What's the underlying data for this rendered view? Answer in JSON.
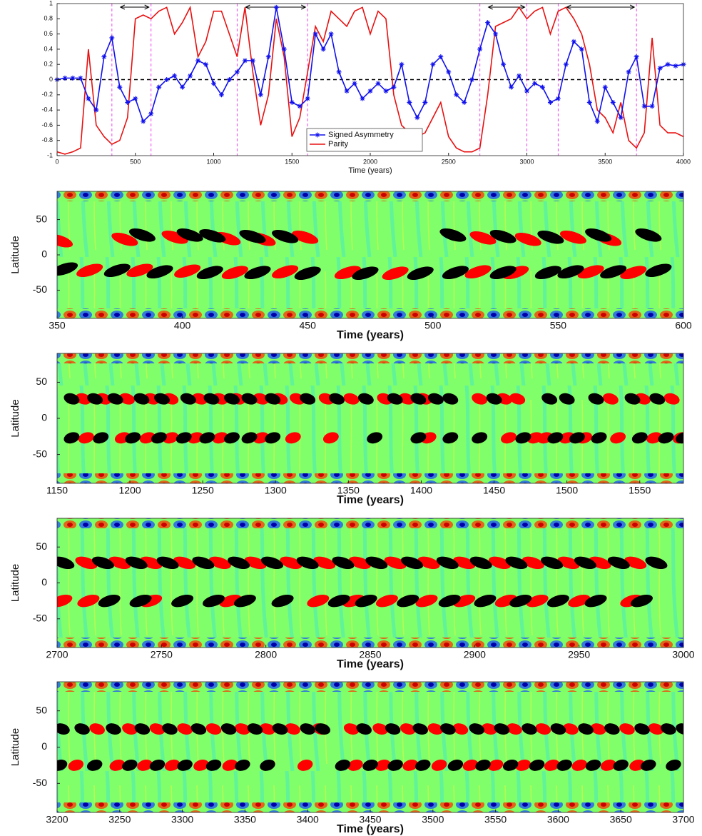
{
  "chart_data": [
    {
      "type": "line",
      "xlabel": "Time (years)",
      "xlim": [
        0,
        4000
      ],
      "xticks": [
        0,
        500,
        1000,
        1500,
        2000,
        2500,
        3000,
        3500,
        4000
      ],
      "ylim": [
        -1,
        1
      ],
      "yticks": [
        -1,
        -0.8,
        -0.6,
        -0.4,
        -0.2,
        0,
        0.2,
        0.4,
        0.6,
        0.8,
        1
      ],
      "reference_line": 0,
      "legend": "lower center",
      "intervals": [
        [
          350,
          600
        ],
        [
          1150,
          1600
        ],
        [
          2700,
          3000
        ],
        [
          3200,
          3700
        ]
      ],
      "x": [
        0,
        50,
        100,
        150,
        200,
        250,
        300,
        350,
        400,
        450,
        500,
        550,
        600,
        650,
        700,
        750,
        800,
        850,
        900,
        950,
        1000,
        1050,
        1100,
        1150,
        1200,
        1250,
        1300,
        1350,
        1400,
        1450,
        1500,
        1550,
        1600,
        1650,
        1700,
        1750,
        1800,
        1850,
        1900,
        1950,
        2000,
        2050,
        2100,
        2150,
        2200,
        2250,
        2300,
        2350,
        2400,
        2450,
        2500,
        2550,
        2600,
        2650,
        2700,
        2750,
        2800,
        2850,
        2900,
        2950,
        3000,
        3050,
        3100,
        3150,
        3200,
        3250,
        3300,
        3350,
        3400,
        3450,
        3500,
        3550,
        3600,
        3650,
        3700,
        3750,
        3800,
        3850,
        3900,
        3950,
        4000
      ],
      "series": [
        {
          "name": "Signed Asymmetry",
          "color": "#1010ee",
          "marker": "*",
          "values": [
            0,
            0.02,
            0.02,
            0.02,
            -0.25,
            -0.4,
            0.3,
            0.55,
            -0.1,
            -0.3,
            -0.25,
            -0.55,
            -0.45,
            -0.1,
            0,
            0.05,
            -0.1,
            0.05,
            0.25,
            0.2,
            -0.05,
            -0.2,
            0,
            0.1,
            0.25,
            0.25,
            -0.2,
            0.3,
            0.95,
            0.4,
            -0.3,
            -0.35,
            -0.25,
            0.6,
            0.4,
            0.6,
            0.1,
            -0.15,
            -0.05,
            -0.25,
            -0.15,
            -0.05,
            -0.15,
            -0.1,
            0.2,
            -0.3,
            -0.5,
            -0.3,
            0.2,
            0.3,
            0.1,
            -0.2,
            -0.3,
            0,
            0.4,
            0.75,
            0.6,
            0.2,
            -0.1,
            0.05,
            -0.15,
            -0.05,
            -0.1,
            -0.3,
            -0.25,
            0.2,
            0.5,
            0.4,
            -0.3,
            -0.55,
            -0.1,
            -0.3,
            -0.5,
            0.1,
            0.3,
            -0.35,
            -0.35,
            0.15,
            0.2,
            0.18,
            0.2
          ]
        },
        {
          "name": "Parity",
          "color": "#e81010",
          "values": [
            -0.95,
            -0.98,
            -0.95,
            -0.9,
            0.4,
            -0.6,
            -0.75,
            -0.85,
            -0.8,
            -0.5,
            0.8,
            0.85,
            0.8,
            0.9,
            0.95,
            0.6,
            0.75,
            0.95,
            0.3,
            0.5,
            0.9,
            0.9,
            0.6,
            0.3,
            0.95,
            0.1,
            -0.6,
            -0.2,
            0.8,
            0.3,
            -0.75,
            -0.5,
            0.1,
            0.7,
            0.5,
            0.9,
            0.8,
            0.7,
            0.9,
            0.95,
            0.6,
            0.9,
            0.8,
            -0.2,
            -0.6,
            -0.7,
            -0.75,
            -0.7,
            -0.5,
            -0.3,
            -0.75,
            -0.9,
            -0.95,
            -0.95,
            -0.9,
            -0.2,
            0.7,
            0.75,
            0.8,
            0.95,
            0.8,
            0.9,
            0.95,
            0.6,
            0.9,
            0.95,
            0.8,
            0.6,
            0.2,
            -0.4,
            -0.5,
            -0.7,
            -0.3,
            -0.8,
            -0.9,
            -0.7,
            0.55,
            -0.6,
            -0.7,
            -0.7,
            -0.75
          ]
        }
      ]
    },
    {
      "type": "butterfly",
      "xlabel": "Time (years)",
      "ylabel": "Latitude",
      "xlim": [
        350,
        600
      ],
      "xticks": [
        350,
        400,
        450,
        500,
        550,
        600
      ],
      "ylim": [
        -90,
        90
      ],
      "yticks": [
        -50,
        0,
        50
      ],
      "series": [
        {
          "color": "#ff0000",
          "x": [
            351,
            377,
            397,
            418,
            432,
            449,
            520,
            538,
            556,
            570,
            363,
            383,
            402,
            421,
            441,
            466,
            485,
            518,
            533,
            563,
            580
          ],
          "y": [
            20,
            22,
            25,
            23,
            22,
            25,
            24,
            22,
            25,
            22,
            -22,
            -22,
            -23,
            -25,
            -24,
            -25,
            -26,
            -24,
            -25,
            -24,
            -25
          ]
        },
        {
          "color": "#000000",
          "x": [
            384,
            403,
            412,
            428,
            441,
            508,
            528,
            547,
            566,
            586,
            353,
            374,
            391,
            411,
            430,
            450,
            473,
            495,
            509,
            528,
            546,
            555,
            572,
            590
          ],
          "y": [
            28,
            28,
            27,
            26,
            26,
            28,
            26,
            25,
            28,
            28,
            -20,
            -22,
            -24,
            -25,
            -25,
            -26,
            -26,
            -26,
            -25,
            -25,
            -25,
            -24,
            -24,
            -22
          ]
        }
      ]
    },
    {
      "type": "butterfly",
      "xlabel": "Time (years)",
      "ylabel": "Latitude",
      "xlim": [
        1150,
        1580
      ],
      "xticks": [
        1150,
        1200,
        1250,
        1300,
        1350,
        1400,
        1450,
        1500,
        1550
      ],
      "ylim": [
        -90,
        90
      ],
      "yticks": [
        -50,
        0,
        50
      ],
      "series": [
        {
          "color": "#ff0000",
          "x": [
            1168,
            1182,
            1198,
            1215,
            1228,
            1248,
            1262,
            1274,
            1290,
            1303,
            1315,
            1335,
            1352,
            1375,
            1390,
            1402,
            1440,
            1457,
            1466,
            1530,
            1552,
            1572
          ],
          "y": [
            27,
            27,
            27,
            27,
            27,
            27,
            27,
            27,
            27,
            27,
            27,
            27,
            27,
            27,
            27,
            27,
            27,
            27,
            27,
            27,
            27,
            27
          ]
        },
        {
          "color": "#ff0000",
          "x": [
            1170,
            1195,
            1212,
            1228,
            1245,
            1262,
            1290,
            1312,
            1338,
            1405,
            1460,
            1478,
            1485,
            1500,
            1512,
            1535,
            1560,
            1578
          ],
          "y": [
            -27,
            -27,
            -27,
            -27,
            -27,
            -27,
            -27,
            -27,
            -27,
            -27,
            -27,
            -27,
            -27,
            -27,
            -27,
            -27,
            -27,
            -27
          ]
        },
        {
          "color": "#000000",
          "x": [
            1160,
            1176,
            1190,
            1208,
            1222,
            1240,
            1256,
            1270,
            1282,
            1298,
            1322,
            1342,
            1362,
            1382,
            1398,
            1410,
            1420,
            1450,
            1488,
            1500,
            1520,
            1545,
            1562
          ],
          "y": [
            27,
            27,
            27,
            27,
            27,
            27,
            27,
            27,
            27,
            27,
            27,
            27,
            27,
            27,
            27,
            27,
            27,
            27,
            27,
            27,
            27,
            27,
            27
          ]
        },
        {
          "color": "#000000",
          "x": [
            1160,
            1180,
            1202,
            1220,
            1237,
            1253,
            1270,
            1282,
            1298,
            1368,
            1398,
            1420,
            1440,
            1470,
            1492,
            1507,
            1522,
            1550,
            1568,
            1580
          ],
          "y": [
            -27,
            -27,
            -27,
            -27,
            -27,
            -27,
            -27,
            -27,
            -27,
            -27,
            -27,
            -27,
            -27,
            -27,
            -27,
            -27,
            -27,
            -27,
            -27,
            -27
          ]
        }
      ]
    },
    {
      "type": "butterfly",
      "xlabel": "Time (years)",
      "ylabel": "Latitude",
      "xlim": [
        2700,
        3000
      ],
      "xticks": [
        2700,
        2750,
        2800,
        2850,
        2900,
        2950,
        3000
      ],
      "ylim": [
        -90,
        90
      ],
      "yticks": [
        -50,
        0,
        50
      ],
      "series": [
        {
          "color": "#ff0000",
          "x": [
            2714,
            2730,
            2745,
            2761,
            2778,
            2795,
            2812,
            2828,
            2845,
            2862,
            2878,
            2895,
            2912,
            2928,
            2945,
            2960,
            2977
          ],
          "y": [
            28,
            28,
            28,
            28,
            28,
            28,
            28,
            28,
            28,
            28,
            28,
            28,
            28,
            28,
            28,
            28,
            28
          ]
        },
        {
          "color": "#000000",
          "x": [
            2703,
            2722,
            2738,
            2753,
            2770,
            2787,
            2803,
            2820,
            2837,
            2853,
            2870,
            2887,
            2903,
            2920,
            2937,
            2953,
            2969,
            2987
          ],
          "y": [
            28,
            28,
            28,
            28,
            28,
            28,
            28,
            28,
            28,
            28,
            28,
            28,
            28,
            28,
            28,
            28,
            28,
            28
          ]
        },
        {
          "color": "#ff0000",
          "x": [
            2702,
            2715,
            2745,
            2783,
            2825,
            2842,
            2858,
            2877,
            2895,
            2915,
            2930,
            2950,
            2975
          ],
          "y": [
            -25,
            -25,
            -25,
            -25,
            -25,
            -25,
            -25,
            -25,
            -25,
            -25,
            -25,
            -25,
            -25
          ]
        },
        {
          "color": "#000000",
          "x": [
            2725,
            2740,
            2760,
            2775,
            2790,
            2808,
            2835,
            2848,
            2868,
            2888,
            2905,
            2922,
            2940,
            2958,
            2980
          ],
          "y": [
            -25,
            -25,
            -25,
            -25,
            -25,
            -25,
            -25,
            -25,
            -25,
            -25,
            -25,
            -25,
            -25,
            -25,
            -25
          ]
        }
      ]
    },
    {
      "type": "butterfly",
      "xlabel": "Time (years)",
      "ylabel": "Latitude",
      "xlim": [
        3200,
        3700
      ],
      "xticks": [
        3200,
        3250,
        3300,
        3350,
        3400,
        3450,
        3500,
        3550,
        3600,
        3650,
        3700
      ],
      "ylim": [
        -90,
        90
      ],
      "yticks": [
        -50,
        0,
        50
      ],
      "series": [
        {
          "color": "#ff0000",
          "x": [
            3232,
            3258,
            3280,
            3302,
            3325,
            3348,
            3368,
            3388,
            3410,
            3435,
            3458,
            3480,
            3502,
            3522,
            3545,
            3565,
            3588,
            3610,
            3632,
            3655,
            3678
          ],
          "y": [
            25,
            25,
            25,
            25,
            25,
            25,
            25,
            25,
            25,
            25,
            25,
            25,
            25,
            25,
            25,
            25,
            25,
            25,
            25,
            25,
            25
          ]
        },
        {
          "color": "#000000",
          "x": [
            3204,
            3220,
            3245,
            3268,
            3290,
            3313,
            3337,
            3358,
            3378,
            3400,
            3412,
            3445,
            3468,
            3490,
            3512,
            3535,
            3555,
            3577,
            3600,
            3622,
            3643,
            3667,
            3688,
            3700
          ],
          "y": [
            25,
            25,
            25,
            25,
            25,
            25,
            25,
            25,
            25,
            25,
            25,
            25,
            25,
            25,
            25,
            25,
            25,
            25,
            25,
            25,
            25,
            25,
            25,
            25
          ]
        },
        {
          "color": "#ff0000",
          "x": [
            3215,
            3248,
            3270,
            3292,
            3315,
            3338,
            3398,
            3438,
            3460,
            3482,
            3505,
            3530,
            3550,
            3572,
            3595,
            3617,
            3640,
            3663
          ],
          "y": [
            -25,
            -25,
            -25,
            -25,
            -25,
            -25,
            -25,
            -25,
            -25,
            -25,
            -25,
            -25,
            -25,
            -25,
            -25,
            -25,
            -25,
            -25
          ]
        },
        {
          "color": "#000000",
          "x": [
            3202,
            3230,
            3258,
            3280,
            3302,
            3325,
            3348,
            3368,
            3428,
            3450,
            3470,
            3492,
            3518,
            3540,
            3562,
            3583,
            3605,
            3628,
            3650,
            3672,
            3692
          ],
          "y": [
            -25,
            -25,
            -25,
            -25,
            -25,
            -25,
            -25,
            -25,
            -25,
            -25,
            -25,
            -25,
            -25,
            -25,
            -25,
            -25,
            -25,
            -25,
            -25,
            -25,
            -25
          ]
        }
      ]
    }
  ]
}
